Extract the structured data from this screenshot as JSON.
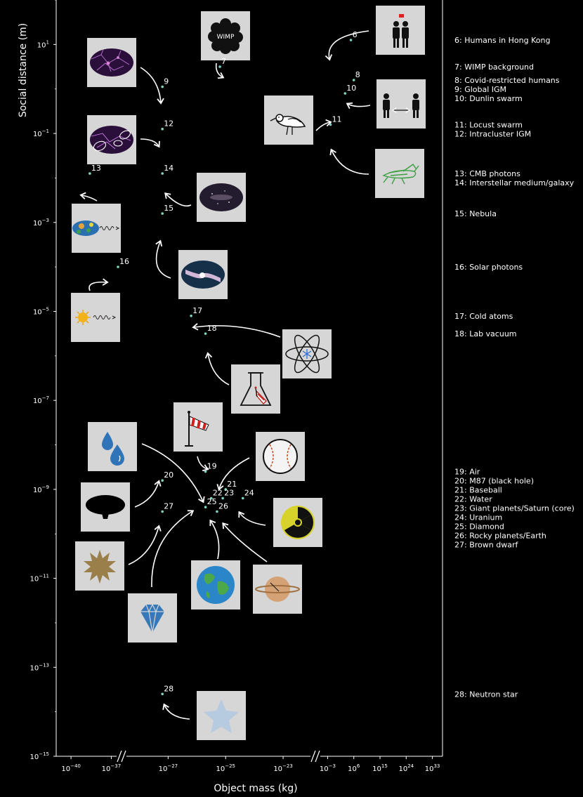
{
  "chart_data": {
    "type": "scatter",
    "title": "",
    "xlabel": "Object mass (kg)",
    "ylabel": "Social distance (m)",
    "y_scale": "log",
    "ylim_exp": [
      -15,
      2
    ],
    "y_ticks": [
      {
        "exp": 1,
        "label": "10",
        "sup": "1"
      },
      {
        "exp": -1,
        "label": "10",
        "sup": "−1"
      },
      {
        "exp": -3,
        "label": "10",
        "sup": "−3"
      },
      {
        "exp": -5,
        "label": "10",
        "sup": "−5"
      },
      {
        "exp": -7,
        "label": "10",
        "sup": "−7"
      },
      {
        "exp": -9,
        "label": "10",
        "sup": "−9"
      },
      {
        "exp": -11,
        "label": "10",
        "sup": "−11"
      },
      {
        "exp": -13,
        "label": "10",
        "sup": "−13"
      },
      {
        "exp": -15,
        "label": "10",
        "sup": "−15"
      }
    ],
    "x_scale": "log (broken axis)",
    "x_ticks": [
      {
        "exp": -40,
        "label": "10",
        "sup": "−40"
      },
      {
        "exp": -37,
        "label": "10",
        "sup": "−37"
      },
      {
        "exp": -27,
        "label": "10",
        "sup": "−27"
      },
      {
        "exp": -25,
        "label": "10",
        "sup": "−25"
      },
      {
        "exp": -23,
        "label": "10",
        "sup": "−23"
      },
      {
        "exp": -3,
        "label": "10",
        "sup": "−3"
      },
      {
        "exp": 6,
        "label": "10",
        "sup": "6"
      },
      {
        "exp": 15,
        "label": "10",
        "sup": "15"
      },
      {
        "exp": 24,
        "label": "10",
        "sup": "24"
      },
      {
        "exp": 33,
        "label": "10",
        "sup": "33"
      }
    ],
    "point_color": "#7fd3c0",
    "points": [
      {
        "id": "6",
        "mass_exp": 5,
        "dist_exp": 1.1
      },
      {
        "id": "7",
        "mass_exp": -25.2,
        "dist_exp": 0.5
      },
      {
        "id": "8",
        "mass_exp": 6,
        "dist_exp": 0.2
      },
      {
        "id": "9",
        "mass_exp": -27.2,
        "dist_exp": 0.05
      },
      {
        "id": "10",
        "mass_exp": 3,
        "dist_exp": -0.1
      },
      {
        "id": "11",
        "mass_exp": -2,
        "dist_exp": -0.8
      },
      {
        "id": "12",
        "mass_exp": -27.2,
        "dist_exp": -0.9
      },
      {
        "id": "13",
        "mass_exp": -38.6,
        "dist_exp": -1.9
      },
      {
        "id": "14",
        "mass_exp": -27.2,
        "dist_exp": -1.9
      },
      {
        "id": "15",
        "mass_exp": -27.2,
        "dist_exp": -2.8
      },
      {
        "id": "16",
        "mass_exp": -36.5,
        "dist_exp": -4.0
      },
      {
        "id": "17",
        "mass_exp": -26.2,
        "dist_exp": -5.1
      },
      {
        "id": "18",
        "mass_exp": -25.7,
        "dist_exp": -5.5
      },
      {
        "id": "19",
        "mass_exp": -25.7,
        "dist_exp": -8.6
      },
      {
        "id": "20",
        "mass_exp": -27.2,
        "dist_exp": -8.8
      },
      {
        "id": "21",
        "mass_exp": -25,
        "dist_exp": -9.0
      },
      {
        "id": "22",
        "mass_exp": -25.5,
        "dist_exp": -9.2
      },
      {
        "id": "23",
        "mass_exp": -25.1,
        "dist_exp": -9.2
      },
      {
        "id": "24",
        "mass_exp": -24.4,
        "dist_exp": -9.2
      },
      {
        "id": "25",
        "mass_exp": -25.7,
        "dist_exp": -9.4
      },
      {
        "id": "26",
        "mass_exp": -25.3,
        "dist_exp": -9.5
      },
      {
        "id": "27",
        "mass_exp": -27.2,
        "dist_exp": -9.5
      },
      {
        "id": "28",
        "mass_exp": -27.2,
        "dist_exp": -13.6
      }
    ],
    "legend": [
      {
        "id": "6",
        "text": "6: Humans in Hong Kong"
      },
      {
        "id": "7",
        "text": "7: WIMP background"
      },
      {
        "id": "8",
        "text": "8: Covid-restricted humans"
      },
      {
        "id": "9",
        "text": "9: Global IGM"
      },
      {
        "id": "10",
        "text": "10: Dunlin swarm"
      },
      {
        "id": "11",
        "text": "11: Locust swarm"
      },
      {
        "id": "12",
        "text": "12: Intracluster IGM"
      },
      {
        "id": "13",
        "text": "13: CMB photons"
      },
      {
        "id": "14",
        "text": "14: Interstellar medium/galaxy"
      },
      {
        "id": "15",
        "text": "15: Nebula"
      },
      {
        "id": "16",
        "text": "16: Solar photons"
      },
      {
        "id": "17",
        "text": "17: Cold atoms"
      },
      {
        "id": "18",
        "text": "18: Lab vacuum"
      },
      {
        "id": "19",
        "text": "19: Air"
      },
      {
        "id": "20",
        "text": "20: M87 (black hole)"
      },
      {
        "id": "21",
        "text": "21: Baseball"
      },
      {
        "id": "22",
        "text": "22: Water"
      },
      {
        "id": "23",
        "text": "23: Giant planets/Saturn (core)"
      },
      {
        "id": "24",
        "text": "24: Uranium"
      },
      {
        "id": "25",
        "text": "25: Diamond"
      },
      {
        "id": "26",
        "text": "26: Rocky planets/Earth"
      },
      {
        "id": "27",
        "text": "27: Brown dwarf"
      },
      {
        "id": "28",
        "text": "28: Neutron star"
      }
    ],
    "thumbnails": [
      {
        "icon": "dark-matter-cluster-icon",
        "label": "WIMP"
      },
      {
        "icon": "humans-hong-kong-icon",
        "label": ""
      },
      {
        "icon": "cosmic-web-icon",
        "label": ""
      },
      {
        "icon": "bird-icon",
        "label": ""
      },
      {
        "icon": "distanced-humans-icon",
        "label": ""
      },
      {
        "icon": "galaxy-cluster-icon",
        "label": ""
      },
      {
        "icon": "locust-icon",
        "label": ""
      },
      {
        "icon": "galaxy-icon",
        "label": ""
      },
      {
        "icon": "cmb-map-icon",
        "label": ""
      },
      {
        "icon": "nebula-icon",
        "label": ""
      },
      {
        "icon": "sun-photon-icon",
        "label": ""
      },
      {
        "icon": "atom-icon",
        "label": ""
      },
      {
        "icon": "flask-icon",
        "label": ""
      },
      {
        "icon": "windsock-icon",
        "label": ""
      },
      {
        "icon": "water-drops-icon",
        "label": ""
      },
      {
        "icon": "baseball-icon",
        "label": ""
      },
      {
        "icon": "black-hole-icon",
        "label": ""
      },
      {
        "icon": "radiation-icon",
        "label": ""
      },
      {
        "icon": "brown-dwarf-icon",
        "label": ""
      },
      {
        "icon": "earth-icon",
        "label": ""
      },
      {
        "icon": "saturn-icon",
        "label": ""
      },
      {
        "icon": "diamond-icon",
        "label": ""
      },
      {
        "icon": "neutron-star-icon",
        "label": ""
      }
    ]
  }
}
